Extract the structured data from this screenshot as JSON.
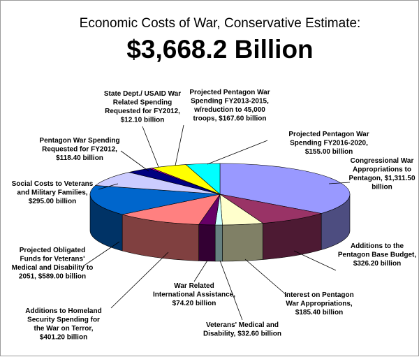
{
  "chart_data": {
    "type": "pie",
    "title": "Economic Costs of War, Conservative Estimate:",
    "total_label": "$3,668.2 Billion",
    "units": "billion",
    "slices": [
      {
        "name": "Congressional War Appropriations to Pentagon",
        "value": 1311.5,
        "color": "#9999ff",
        "label": [
          "Congressional War",
          "Appropriations to",
          "Pentagon, $1,311.50",
          "billion"
        ]
      },
      {
        "name": "Additions to the Pentagon Base Budget",
        "value": 326.2,
        "color": "#993366",
        "label": [
          "Additions to the",
          "Pentagon Base Budget,",
          "$326.20 billion"
        ]
      },
      {
        "name": "Interest on Pentagon War Appropriations",
        "value": 185.4,
        "color": "#ffffcc",
        "label": [
          "Interest on Pentagon",
          "War Appropriations,",
          "$185.40 billion"
        ]
      },
      {
        "name": "Veterans' Medical and Disability",
        "value": 32.6,
        "color": "#ccffff",
        "label": [
          "Veterans' Medical and",
          "Disability, $32.60 billion"
        ]
      },
      {
        "name": "War Related International Assistance",
        "value": 74.2,
        "color": "#660066",
        "label": [
          "War Related",
          "International Assistance,",
          "$74.20 billion"
        ]
      },
      {
        "name": "Additions to Homeland Security Spending for the War on Terror",
        "value": 401.2,
        "color": "#ff8080",
        "label": [
          "Additions to Homeland",
          "Security Spending for",
          "the War on Terror,",
          "$401.20 billion"
        ]
      },
      {
        "name": "Projected Obligated Funds for Veterans' Medical and Disability to 2051",
        "value": 589.0,
        "color": "#0066cc",
        "label": [
          "Projected Obligated",
          "Funds for Veterans'",
          "Medical and Disability to",
          "2051, $589.00 billion"
        ]
      },
      {
        "name": "Social Costs to Veterans and Military Families",
        "value": 295.0,
        "color": "#ccccff",
        "label": [
          "Social Costs to Veterans",
          "and Military Families,",
          "$295.00 billion"
        ]
      },
      {
        "name": "Pentagon War Spending Requested for FY2012",
        "value": 118.4,
        "color": "#000080",
        "label": [
          "Pentagon War Spending",
          "Requested for FY2012,",
          "$118.40 billion"
        ]
      },
      {
        "name": "State Dept./ USAID War Related Spending Requested for FY2012",
        "value": 12.1,
        "color": "#ff00ff",
        "label": [
          "State Dept./ USAID War",
          "Related Spending",
          "Requested for FY2012,",
          "$12.10 billion"
        ]
      },
      {
        "name": "Projected Pentagon War Spending FY2013-2015, w/reduction to 45,000 troops",
        "value": 167.6,
        "color": "#ffff00",
        "label": [
          "Projected Pentagon War",
          "Spending FY2013-2015,",
          "w/reduction to 45,000",
          "troops, $167.60 billion"
        ]
      },
      {
        "name": "Projected Pentagon War Spending FY2016-2020",
        "value": 155.0,
        "color": "#00ffff",
        "label": [
          "Projected Pentagon War",
          "Spending FY2016-2020,",
          "$155.00 billion"
        ]
      }
    ]
  }
}
